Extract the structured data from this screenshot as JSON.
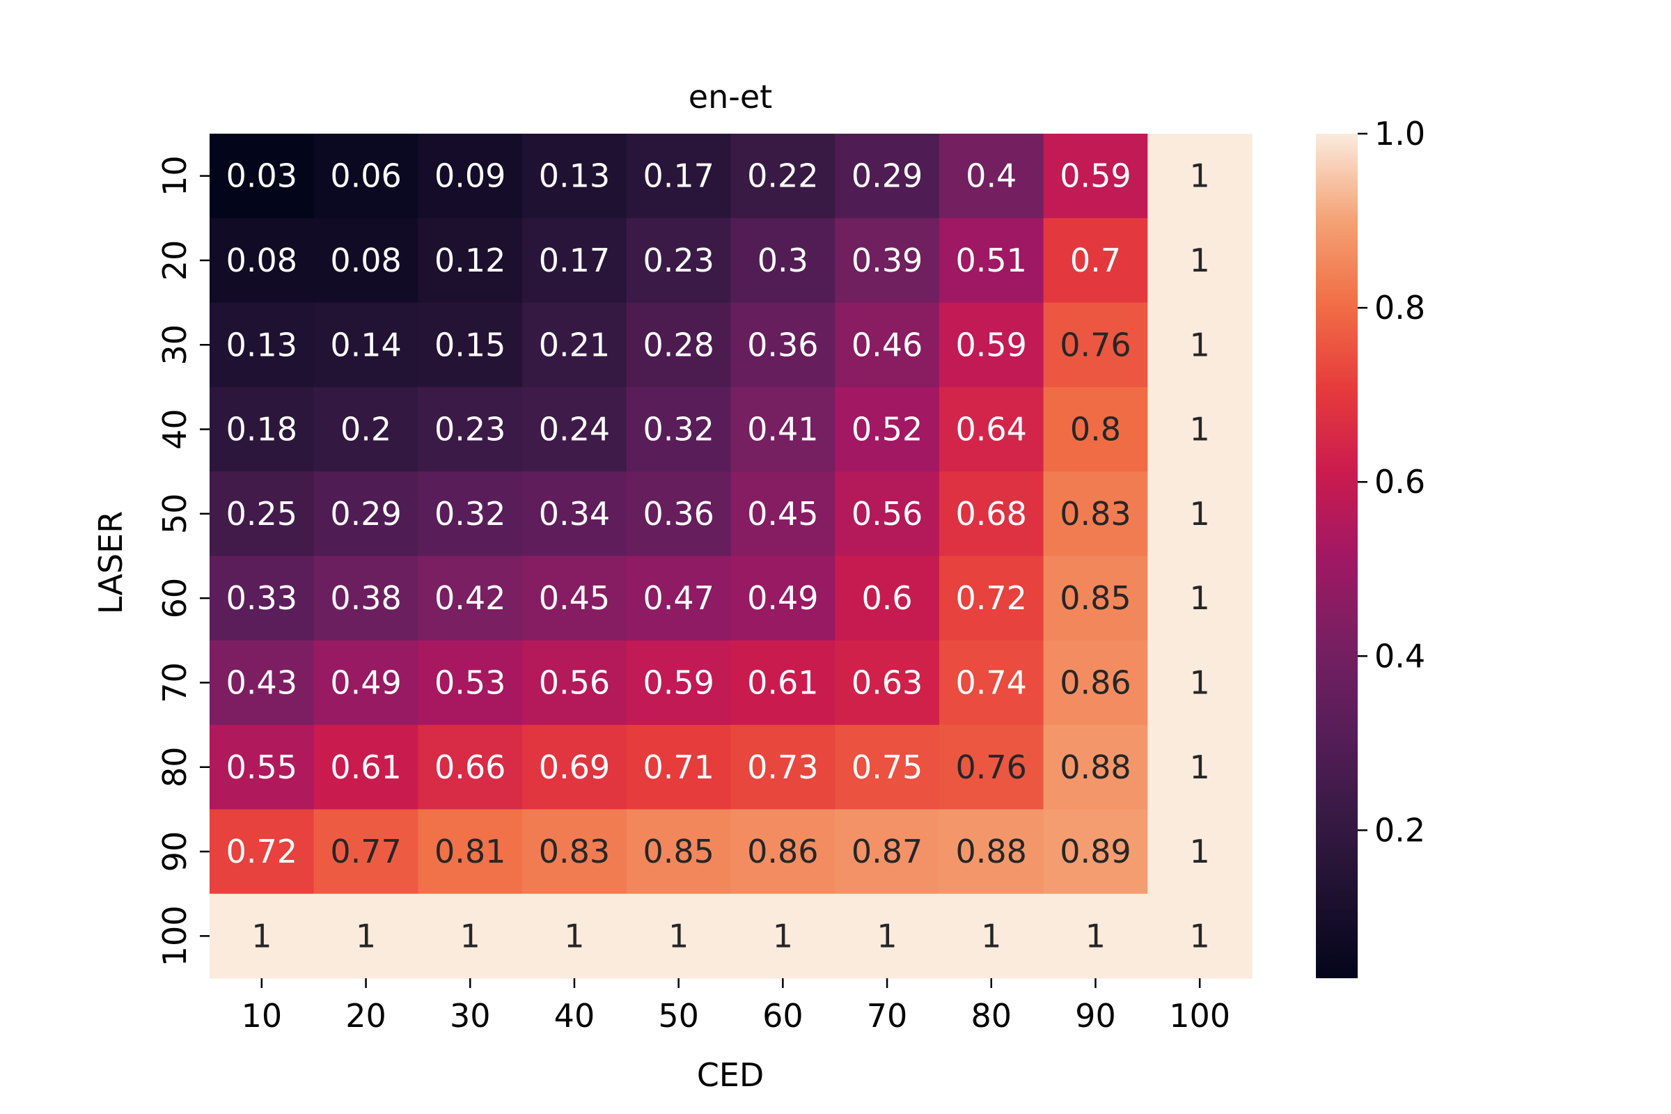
{
  "chart_data": {
    "type": "heatmap",
    "title": "en-et",
    "xlabel": "CED",
    "ylabel": "LASER",
    "x_categories": [
      "10",
      "20",
      "30",
      "40",
      "50",
      "60",
      "70",
      "80",
      "90",
      "100"
    ],
    "y_categories": [
      "10",
      "20",
      "30",
      "40",
      "50",
      "60",
      "70",
      "80",
      "90",
      "100"
    ],
    "values": [
      [
        0.03,
        0.06,
        0.09,
        0.13,
        0.17,
        0.22,
        0.29,
        0.4,
        0.59,
        1
      ],
      [
        0.08,
        0.08,
        0.12,
        0.17,
        0.23,
        0.3,
        0.39,
        0.51,
        0.7,
        1
      ],
      [
        0.13,
        0.14,
        0.15,
        0.21,
        0.28,
        0.36,
        0.46,
        0.59,
        0.76,
        1
      ],
      [
        0.18,
        0.2,
        0.23,
        0.24,
        0.32,
        0.41,
        0.52,
        0.64,
        0.8,
        1
      ],
      [
        0.25,
        0.29,
        0.32,
        0.34,
        0.36,
        0.45,
        0.56,
        0.68,
        0.83,
        1
      ],
      [
        0.33,
        0.38,
        0.42,
        0.45,
        0.47,
        0.49,
        0.6,
        0.72,
        0.85,
        1
      ],
      [
        0.43,
        0.49,
        0.53,
        0.56,
        0.59,
        0.61,
        0.63,
        0.74,
        0.86,
        1
      ],
      [
        0.55,
        0.61,
        0.66,
        0.69,
        0.71,
        0.73,
        0.75,
        0.76,
        0.88,
        1
      ],
      [
        0.72,
        0.77,
        0.81,
        0.83,
        0.85,
        0.86,
        0.87,
        0.88,
        0.89,
        1
      ],
      [
        1,
        1,
        1,
        1,
        1,
        1,
        1,
        1,
        1,
        1
      ]
    ],
    "colorbar": {
      "range": [
        0.03,
        1.0
      ],
      "ticks": [
        0.2,
        0.4,
        0.6,
        0.8,
        1.0
      ],
      "tick_labels": [
        "0.2",
        "0.4",
        "0.6",
        "0.8",
        "1.0"
      ],
      "colormap": "rocket"
    }
  }
}
